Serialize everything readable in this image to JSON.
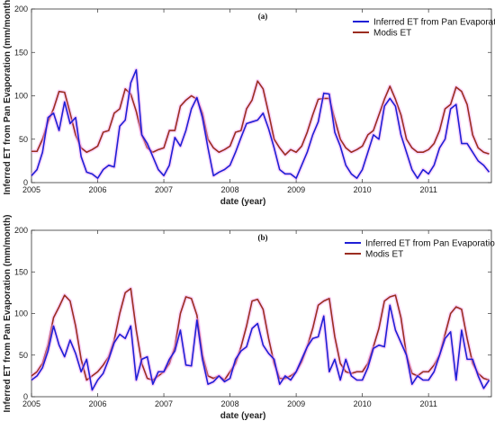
{
  "colors": {
    "inferred": "#1f1fd6",
    "modis": "#9b2d20",
    "halo": "#f3a6f3"
  },
  "chart_data": [
    {
      "type": "line",
      "title": "(a)",
      "xlabel": "date (year)",
      "ylabel": "Inferred ET from Pan Evaporation (mm/month)",
      "xlim": [
        2005,
        2011.95
      ],
      "ylim": [
        0,
        200
      ],
      "yticks": [
        0,
        50,
        100,
        150,
        200
      ],
      "xticks": [
        "2005",
        "2006",
        "2007",
        "2008",
        "2009",
        "2010",
        "2011"
      ],
      "grid": false,
      "legend": "top-right",
      "series": [
        {
          "name": "Inferred ET from Pan Evaporation",
          "values": [
            8,
            15,
            35,
            75,
            80,
            60,
            93,
            68,
            75,
            30,
            12,
            10,
            5,
            15,
            20,
            18,
            65,
            72,
            115,
            130,
            55,
            45,
            30,
            15,
            8,
            20,
            52,
            42,
            60,
            85,
            98,
            75,
            40,
            8,
            12,
            15,
            20,
            35,
            52,
            68,
            70,
            72,
            80,
            62,
            40,
            15,
            10,
            10,
            5,
            20,
            35,
            55,
            70,
            103,
            102,
            58,
            42,
            20,
            10,
            5,
            15,
            35,
            55,
            50,
            88,
            97,
            88,
            55,
            35,
            15,
            5,
            15,
            10,
            20,
            40,
            50,
            85,
            90,
            45,
            45,
            35,
            25,
            20,
            12
          ]
        },
        {
          "name": "Modis ET",
          "values": [
            36,
            36,
            50,
            70,
            85,
            105,
            104,
            80,
            55,
            40,
            35,
            38,
            42,
            58,
            60,
            80,
            85,
            108,
            102,
            82,
            55,
            40,
            35,
            38,
            40,
            60,
            60,
            88,
            95,
            100,
            96,
            80,
            50,
            40,
            35,
            38,
            42,
            58,
            60,
            85,
            95,
            117,
            108,
            80,
            50,
            40,
            32,
            38,
            35,
            42,
            58,
            78,
            96,
            97,
            97,
            73,
            50,
            40,
            35,
            38,
            42,
            55,
            60,
            78,
            96,
            111,
            96,
            78,
            50,
            40,
            35,
            35,
            38,
            45,
            60,
            85,
            90,
            110,
            105,
            90,
            55,
            40,
            35,
            33
          ]
        }
      ]
    },
    {
      "type": "line",
      "title": "(b)",
      "xlabel": "date (year)",
      "ylabel": "Inferred ET from Pan Evaporation (mm/month)",
      "xlim": [
        2005,
        2011.95
      ],
      "ylim": [
        0,
        200
      ],
      "yticks": [
        0,
        50,
        100,
        150,
        200
      ],
      "xticks": [
        "2005",
        "2006",
        "2007",
        "2008",
        "2009",
        "2010",
        "2011"
      ],
      "grid": false,
      "legend": "top-right",
      "series": [
        {
          "name": "Inferred ET from Pan Evaporation",
          "values": [
            20,
            25,
            35,
            55,
            85,
            62,
            48,
            68,
            52,
            30,
            45,
            8,
            20,
            28,
            45,
            65,
            75,
            70,
            85,
            20,
            45,
            48,
            15,
            30,
            30,
            45,
            55,
            80,
            38,
            37,
            92,
            45,
            15,
            18,
            25,
            18,
            22,
            45,
            55,
            60,
            82,
            88,
            62,
            52,
            45,
            15,
            25,
            20,
            30,
            45,
            60,
            70,
            72,
            97,
            30,
            45,
            20,
            45,
            25,
            20,
            20,
            35,
            58,
            62,
            60,
            110,
            80,
            65,
            50,
            15,
            25,
            20,
            20,
            30,
            50,
            70,
            78,
            20,
            80,
            45,
            45,
            25,
            10,
            20
          ]
        },
        {
          "name": "Modis ET",
          "values": [
            25,
            30,
            40,
            62,
            95,
            108,
            122,
            115,
            85,
            45,
            20,
            25,
            30,
            38,
            48,
            68,
            100,
            125,
            130,
            80,
            40,
            22,
            20,
            25,
            30,
            40,
            60,
            100,
            120,
            118,
            98,
            50,
            25,
            22,
            25,
            20,
            30,
            40,
            60,
            85,
            115,
            117,
            105,
            70,
            40,
            22,
            22,
            25,
            30,
            42,
            60,
            82,
            110,
            115,
            118,
            72,
            40,
            30,
            28,
            30,
            30,
            40,
            60,
            82,
            115,
            120,
            122,
            95,
            50,
            28,
            25,
            30,
            30,
            38,
            50,
            75,
            100,
            108,
            105,
            70,
            40,
            28,
            22,
            20
          ]
        }
      ]
    }
  ]
}
